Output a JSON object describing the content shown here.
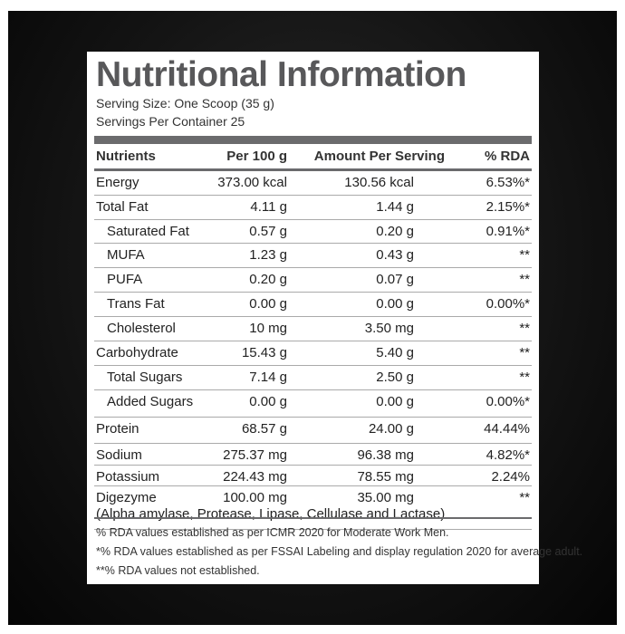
{
  "title": "Nutritional Information",
  "serving_size": "Serving Size: One Scoop (35 g)",
  "servings_per_container": "Servings Per Container 25",
  "table": {
    "headers": [
      "Nutrients",
      "Per 100 g",
      "Amount Per Serving",
      "% RDA"
    ],
    "rows": [
      {
        "cells": [
          "Energy",
          "373.00 kcal",
          "130.56 kcal",
          "6.53%*"
        ]
      },
      {
        "cells": [
          "Total Fat",
          "4.11 g",
          "1.44 g",
          "2.15%*"
        ]
      },
      {
        "cells": [
          "Saturated Fat",
          "0.57 g",
          "0.20 g",
          "0.91%*"
        ],
        "sub": true
      },
      {
        "cells": [
          "MUFA",
          "1.23 g",
          "0.43 g",
          "**"
        ],
        "sub": true
      },
      {
        "cells": [
          "PUFA",
          "0.20 g",
          "0.07 g",
          "**"
        ],
        "sub": true
      },
      {
        "cells": [
          "Trans Fat",
          "0.00 g",
          "0.00 g",
          "0.00%*"
        ],
        "sub": true
      },
      {
        "cells": [
          "Cholesterol",
          "10 mg",
          "3.50 mg",
          "**"
        ],
        "sub": true
      },
      {
        "cells": [
          "Carbohydrate",
          "15.43 g",
          "5.40 g",
          "**"
        ]
      },
      {
        "cells": [
          "Total Sugars",
          "7.14 g",
          "2.50 g",
          "**"
        ],
        "sub": true
      },
      {
        "cells": [
          "Added Sugars",
          "0.00 g",
          "0.00 g",
          "0.00%*"
        ],
        "sub": true
      },
      {
        "cells": [
          "Protein",
          "68.57 g",
          "24.00 g",
          "44.44%"
        ]
      },
      {
        "cells": [
          "Sodium",
          "275.37 mg",
          "96.38 mg",
          "4.82%*"
        ]
      },
      {
        "cells": [
          "Potassium",
          "224.43 mg",
          "78.55 mg",
          "2.24%"
        ]
      },
      {
        "cells": [
          "Digezyme",
          "100.00 mg",
          "35.00 mg",
          "**"
        ],
        "note": "(Alpha amylase, Protease, Lipase, Cellulase and Lactase)"
      }
    ]
  },
  "footnotes": [
    "% RDA values established as per ICMR 2020 for Moderate Work Men.",
    "*% RDA values established as per FSSAI Labeling and display regulation 2020 for average adult.",
    "**% RDA values not established."
  ]
}
